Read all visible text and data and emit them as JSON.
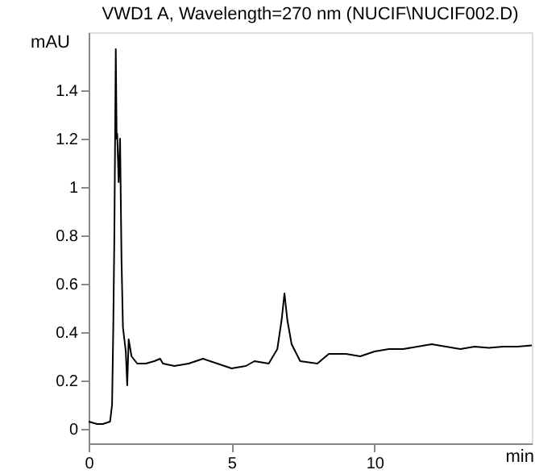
{
  "chart_data": {
    "type": "line",
    "title": "VWD1 A, Wavelength=270 nm (NUCIF\\NUCIF002.D)",
    "xlabel": "min",
    "ylabel": "mAU",
    "x": [
      0,
      0.3,
      0.5,
      0.75,
      0.82,
      0.86,
      0.9,
      0.95,
      0.98,
      1.0,
      1.05,
      1.1,
      1.15,
      1.2,
      1.3,
      1.35,
      1.4,
      1.5,
      1.7,
      2.0,
      2.3,
      2.5,
      2.6,
      3.0,
      3.5,
      4.0,
      4.5,
      5.0,
      5.5,
      5.8,
      6.3,
      6.6,
      6.75,
      6.85,
      6.95,
      7.1,
      7.4,
      8.0,
      8.4,
      9.0,
      9.5,
      10.0,
      10.5,
      11.0,
      11.5,
      12.0,
      12.5,
      13.0,
      13.5,
      14.0,
      14.5,
      15.0,
      15.5
    ],
    "series": [
      {
        "color": "#000000",
        "values": [
          0.03,
          0.02,
          0.02,
          0.03,
          0.1,
          0.4,
          0.8,
          1.57,
          1.2,
          1.22,
          1.02,
          1.2,
          0.7,
          0.42,
          0.32,
          0.18,
          0.37,
          0.3,
          0.27,
          0.27,
          0.28,
          0.29,
          0.27,
          0.26,
          0.27,
          0.29,
          0.27,
          0.25,
          0.26,
          0.28,
          0.27,
          0.33,
          0.45,
          0.56,
          0.45,
          0.35,
          0.28,
          0.27,
          0.31,
          0.31,
          0.3,
          0.32,
          0.33,
          0.33,
          0.34,
          0.35,
          0.34,
          0.33,
          0.34,
          0.335,
          0.34,
          0.34,
          0.345
        ]
      }
    ],
    "xlim": [
      0,
      15.5
    ],
    "ylim": [
      -0.06,
      1.64
    ],
    "xticks": [
      0,
      5,
      10
    ],
    "yticks": [
      0,
      0.2,
      0.4,
      0.6,
      0.8,
      1,
      1.2,
      1.4
    ],
    "grid": false,
    "marker": "none",
    "line_style": "solid"
  }
}
